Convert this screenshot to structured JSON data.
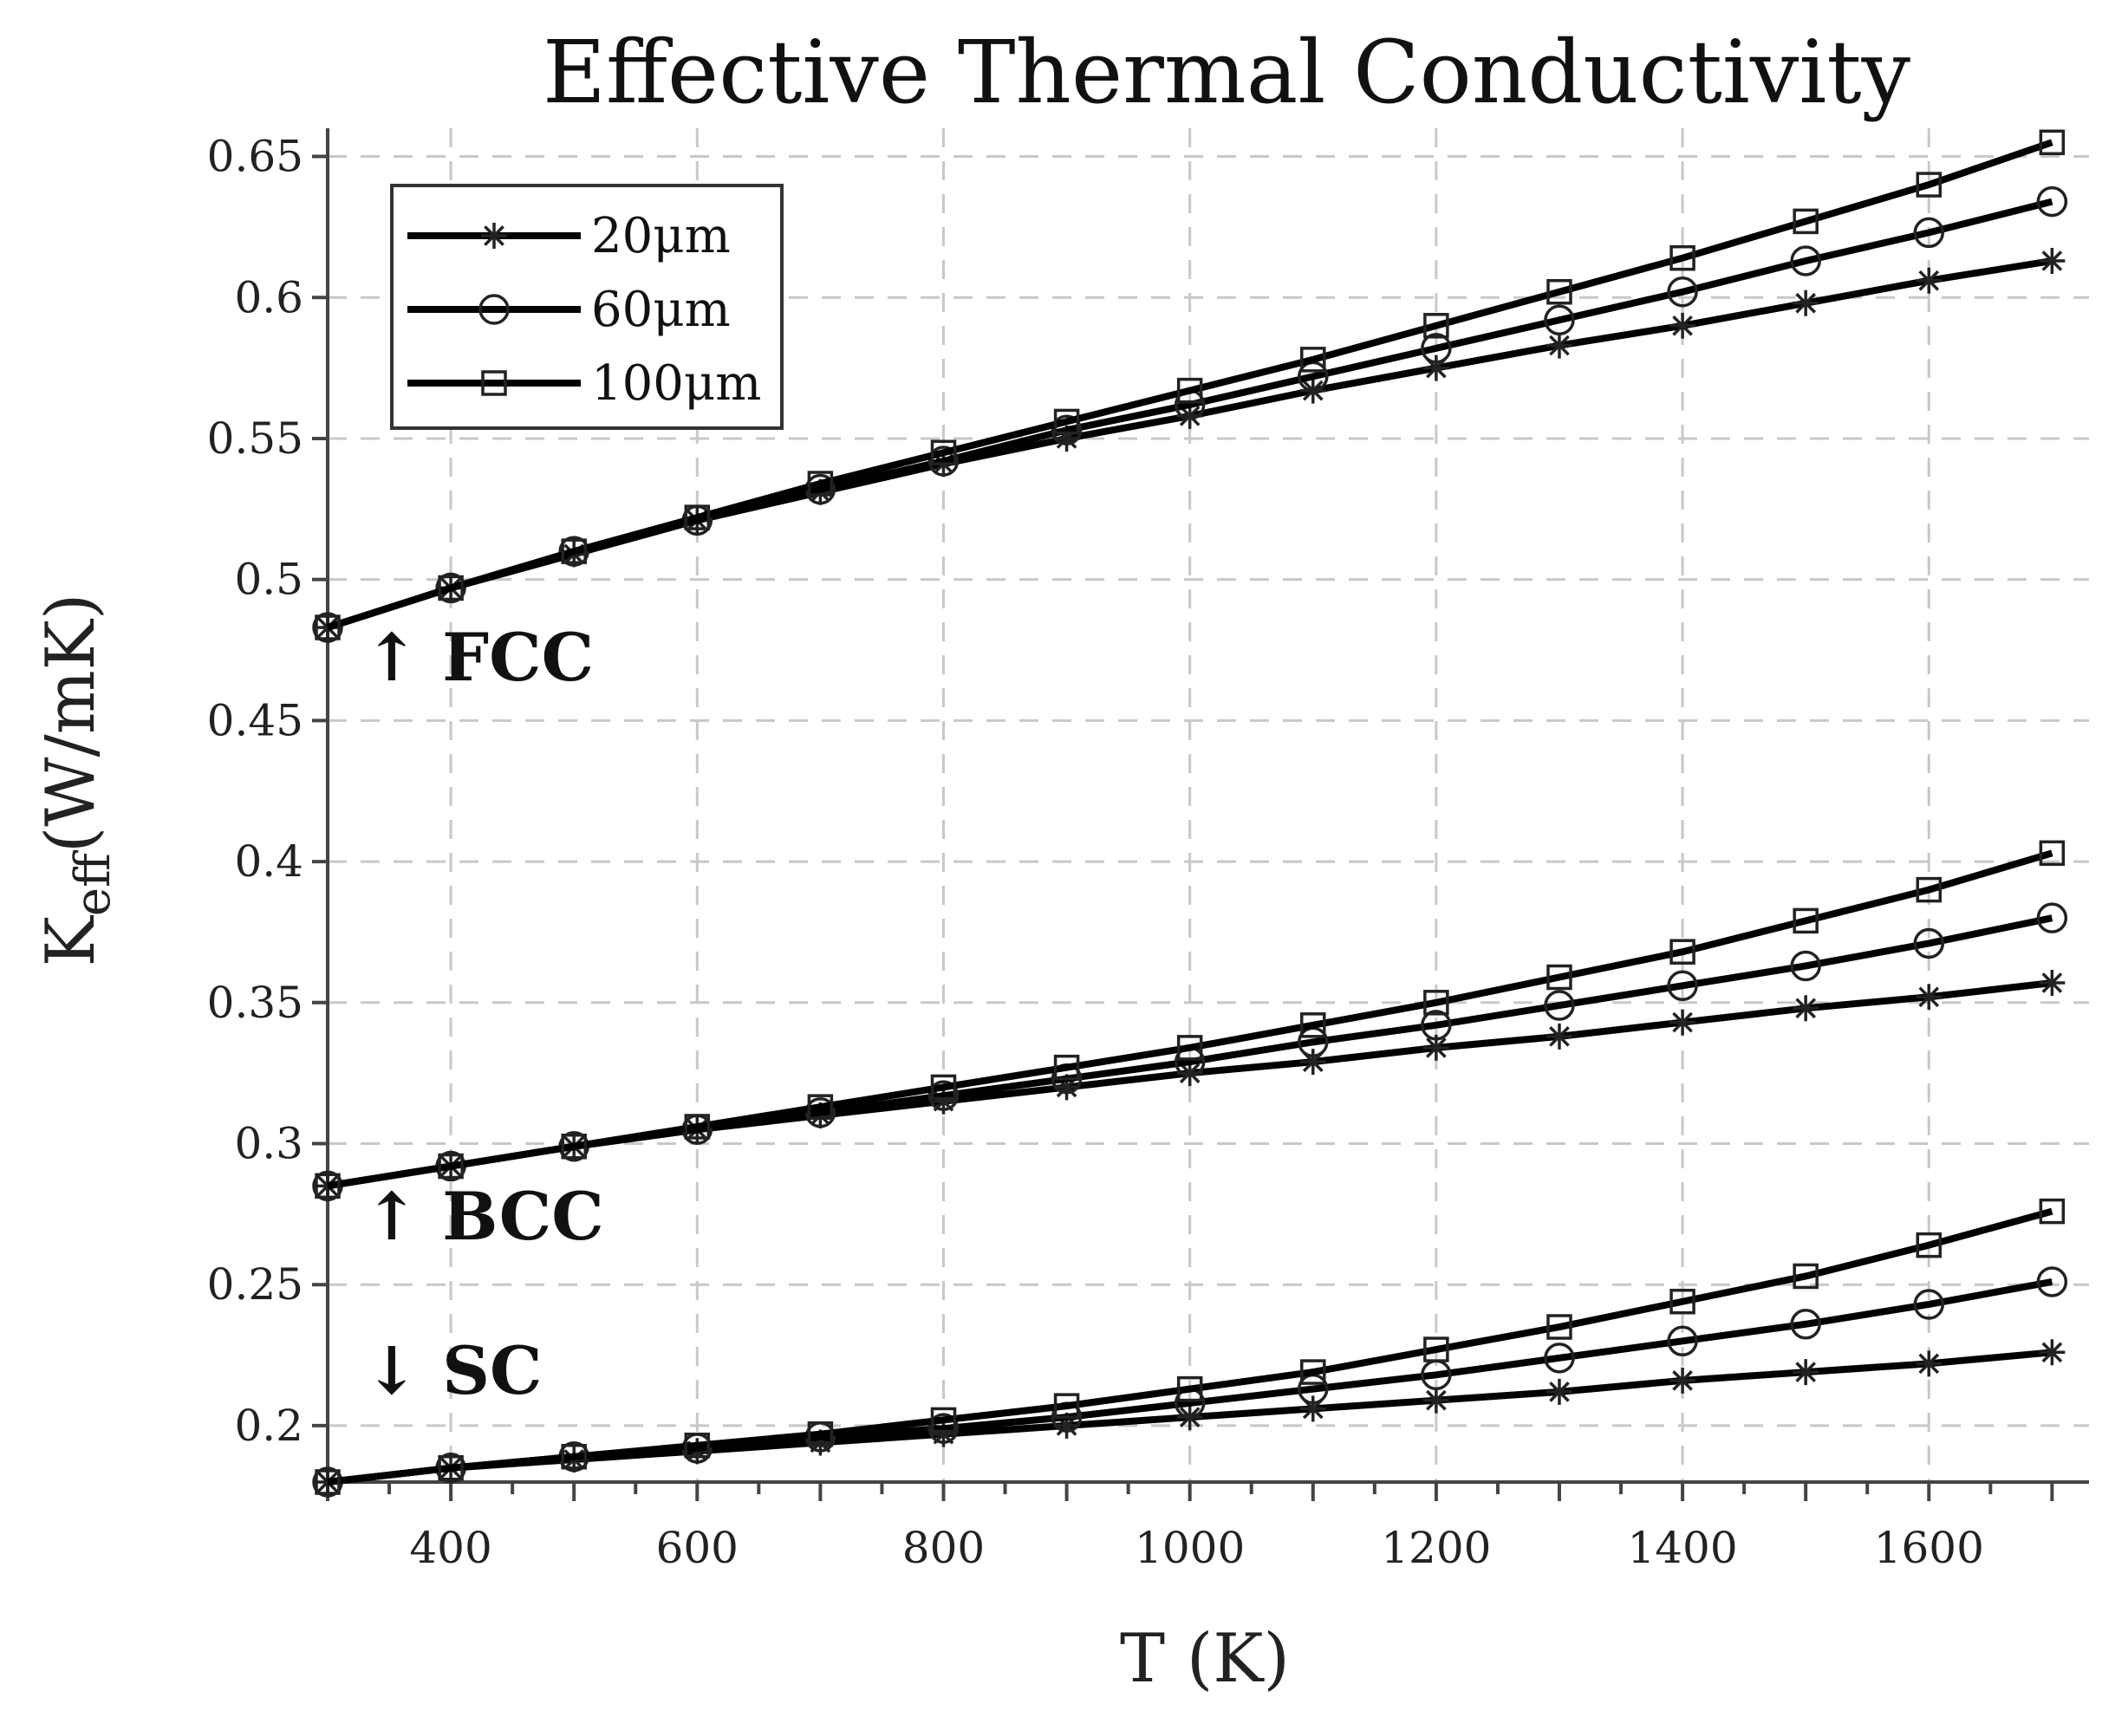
{
  "chart_data": {
    "type": "line",
    "title": "Effective Thermal Conductivity",
    "xlabel": "T (K)",
    "ylabel": {
      "main": "K",
      "sub": "eff",
      "unit": "(W/mK)"
    },
    "xlim": [
      300,
      1730
    ],
    "ylim": [
      0.18,
      0.66
    ],
    "xticks": [
      400,
      600,
      800,
      1000,
      1200,
      1400,
      1600
    ],
    "yticks": [
      0.2,
      0.25,
      0.3,
      0.35,
      0.4,
      0.45,
      0.5,
      0.55,
      0.6,
      0.65
    ],
    "ytick_labels": [
      "0.2",
      "0.25",
      "0.3",
      "0.35",
      "0.4",
      "0.45",
      "0.5",
      "0.55",
      "0.6",
      "0.65"
    ],
    "grid": true,
    "legend_position": "top-left",
    "x": [
      300,
      400,
      500,
      600,
      700,
      800,
      900,
      1000,
      1100,
      1200,
      1300,
      1400,
      1500,
      1600,
      1700
    ],
    "groups": [
      {
        "label": "↑ FCC",
        "series": [
          {
            "name": "20μm",
            "marker": "star",
            "values": [
              0.483,
              0.497,
              0.509,
              0.521,
              0.531,
              0.541,
              0.55,
              0.558,
              0.567,
              0.575,
              0.583,
              0.59,
              0.598,
              0.606,
              0.613
            ]
          },
          {
            "name": "60μm",
            "marker": "circle",
            "values": [
              0.483,
              0.497,
              0.51,
              0.521,
              0.532,
              0.542,
              0.553,
              0.562,
              0.572,
              0.582,
              0.592,
              0.602,
              0.613,
              0.623,
              0.634
            ]
          },
          {
            "name": "100μm",
            "marker": "square",
            "values": [
              0.483,
              0.497,
              0.51,
              0.522,
              0.534,
              0.545,
              0.556,
              0.567,
              0.578,
              0.59,
              0.602,
              0.614,
              0.627,
              0.64,
              0.655
            ]
          }
        ]
      },
      {
        "label": "↑ BCC",
        "series": [
          {
            "name": "20μm",
            "marker": "star",
            "values": [
              0.285,
              0.292,
              0.299,
              0.305,
              0.31,
              0.315,
              0.32,
              0.325,
              0.329,
              0.334,
              0.338,
              0.343,
              0.348,
              0.352,
              0.357
            ]
          },
          {
            "name": "60μm",
            "marker": "circle",
            "values": [
              0.285,
              0.292,
              0.299,
              0.305,
              0.311,
              0.317,
              0.323,
              0.329,
              0.336,
              0.342,
              0.349,
              0.356,
              0.363,
              0.371,
              0.38
            ]
          },
          {
            "name": "100μm",
            "marker": "square",
            "values": [
              0.285,
              0.292,
              0.299,
              0.306,
              0.313,
              0.32,
              0.327,
              0.334,
              0.342,
              0.35,
              0.359,
              0.368,
              0.379,
              0.39,
              0.403
            ]
          }
        ]
      },
      {
        "label": "↓ SC",
        "series": [
          {
            "name": "20μm",
            "marker": "star",
            "values": [
              0.18,
              0.185,
              0.188,
              0.191,
              0.194,
              0.197,
              0.2,
              0.203,
              0.206,
              0.209,
              0.212,
              0.216,
              0.219,
              0.222,
              0.226
            ]
          },
          {
            "name": "60μm",
            "marker": "circle",
            "values": [
              0.18,
              0.185,
              0.189,
              0.192,
              0.196,
              0.199,
              0.203,
              0.208,
              0.213,
              0.218,
              0.224,
              0.23,
              0.236,
              0.243,
              0.251
            ]
          },
          {
            "name": "100μm",
            "marker": "square",
            "values": [
              0.18,
              0.185,
              0.189,
              0.193,
              0.197,
              0.202,
              0.207,
              0.213,
              0.219,
              0.227,
              0.235,
              0.244,
              0.253,
              0.264,
              0.276
            ]
          }
        ]
      }
    ],
    "legend": [
      {
        "name": "20μm",
        "marker": "star"
      },
      {
        "name": "60μm",
        "marker": "circle"
      },
      {
        "name": "100μm",
        "marker": "square"
      }
    ]
  }
}
